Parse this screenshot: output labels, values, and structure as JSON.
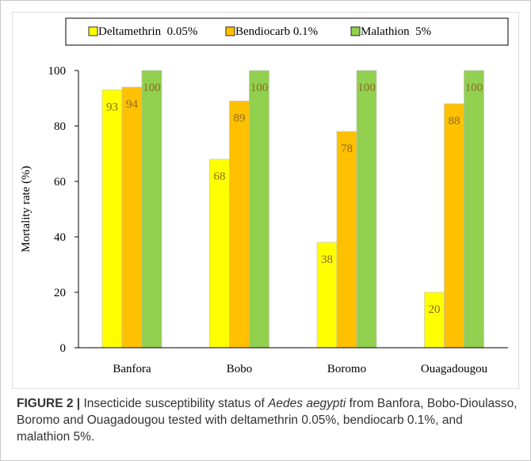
{
  "chart_data": {
    "type": "bar",
    "categories": [
      "Banfora",
      "Bobo",
      "Boromo",
      "Ouagadougou"
    ],
    "series": [
      {
        "name": "Deltamethrin  0.05%",
        "values": [
          93,
          68,
          38,
          20
        ],
        "color": "#ffff00"
      },
      {
        "name": "Bendiocarb 0.1%",
        "values": [
          94,
          89,
          78,
          88
        ],
        "color": "#ffc000"
      },
      {
        "name": "Malathion  5%",
        "values": [
          100,
          100,
          100,
          100
        ],
        "color": "#92d050"
      }
    ],
    "title": "",
    "xlabel": "",
    "ylabel": "Mortality rate (%)",
    "ylim": [
      0,
      100
    ],
    "yticks": [
      0,
      20,
      40,
      60,
      80,
      100
    ],
    "grid": false,
    "legend": "top",
    "data_labels": true,
    "label_color": "#8b6b20"
  },
  "caption": {
    "label": "FIGURE 2 |",
    "text_before": " Insecticide susceptibility status of ",
    "species": "Aedes aegypti",
    "text_after": " from Banfora, Bobo-Dioulasso, Boromo and Ouagadougou tested with deltamethrin 0.05%, bendiocarb 0.1%, and malathion 5%."
  }
}
